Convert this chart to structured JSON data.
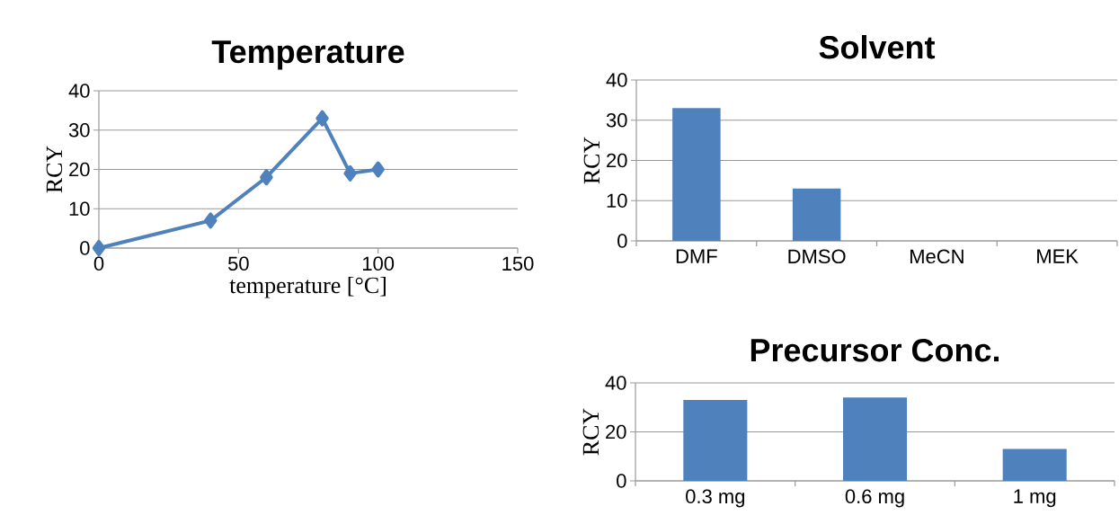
{
  "chart_data": [
    {
      "type": "line",
      "title": "Temperature",
      "xlabel": "temperature [°C]",
      "ylabel": "RCY",
      "x": [
        0,
        40,
        60,
        80,
        90,
        100
      ],
      "values": [
        0,
        7,
        18,
        33,
        19,
        20
      ],
      "color": "#4f81bd",
      "marker": "diamond",
      "xlim": [
        0,
        150
      ],
      "xticks": [
        0,
        50,
        100,
        150
      ],
      "ylim": [
        0,
        40
      ],
      "yticks": [
        0,
        10,
        20,
        30,
        40
      ],
      "grid": "y"
    },
    {
      "type": "bar",
      "title": "Solvent",
      "ylabel": "RCY",
      "categories": [
        "DMF",
        "DMSO",
        "MeCN",
        "MEK"
      ],
      "values": [
        33,
        13,
        0,
        0
      ],
      "color": "#4f81bd",
      "ylim": [
        0,
        40
      ],
      "yticks": [
        0,
        10,
        20,
        30,
        40
      ],
      "grid": "y"
    },
    {
      "type": "bar",
      "title": "Precursor Conc.",
      "ylabel": "RCY",
      "categories": [
        "0.3 mg",
        "0.6 mg",
        "1 mg"
      ],
      "values": [
        33,
        34,
        13
      ],
      "color": "#4f81bd",
      "ylim": [
        0,
        40
      ],
      "yticks": [
        0,
        20,
        40
      ],
      "grid": "y"
    }
  ]
}
